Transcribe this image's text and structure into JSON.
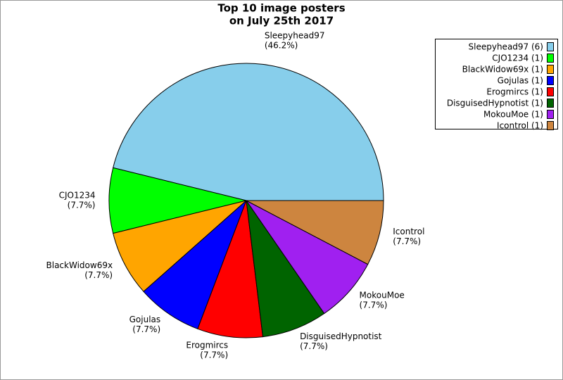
{
  "chart_data": {
    "type": "pie",
    "title": [
      "Top 10 image posters",
      "on July 25th 2017"
    ],
    "categories": [
      "Sleepyhead97",
      "CJO1234",
      "BlackWidow69x",
      "Gojulas",
      "Erogmircs",
      "DisguisedHypnotist",
      "MokouMoe",
      "Icontrol"
    ],
    "values": [
      6,
      1,
      1,
      1,
      1,
      1,
      1,
      1
    ],
    "value_labels": [
      "(46.2%)",
      "(7.7%)",
      "(7.7%)",
      "(7.7%)",
      "(7.7%)",
      "(7.7%)",
      "(7.7%)",
      "(7.7%)"
    ],
    "legend_labels": [
      "Sleepyhead97 (6)",
      "CJO1234 (1)",
      "BlackWidow69x (1)",
      "Gojulas (1)",
      "Erogmircs (1)",
      "DisguisedHypnotist (1)",
      "MokouMoe (1)",
      "Icontrol (1)"
    ],
    "colors": [
      "#87ceeb",
      "#00ff00",
      "#ffa500",
      "#0000ff",
      "#ff0000",
      "#006400",
      "#a020f0",
      "#cd853f"
    ],
    "legend": "upper right"
  }
}
